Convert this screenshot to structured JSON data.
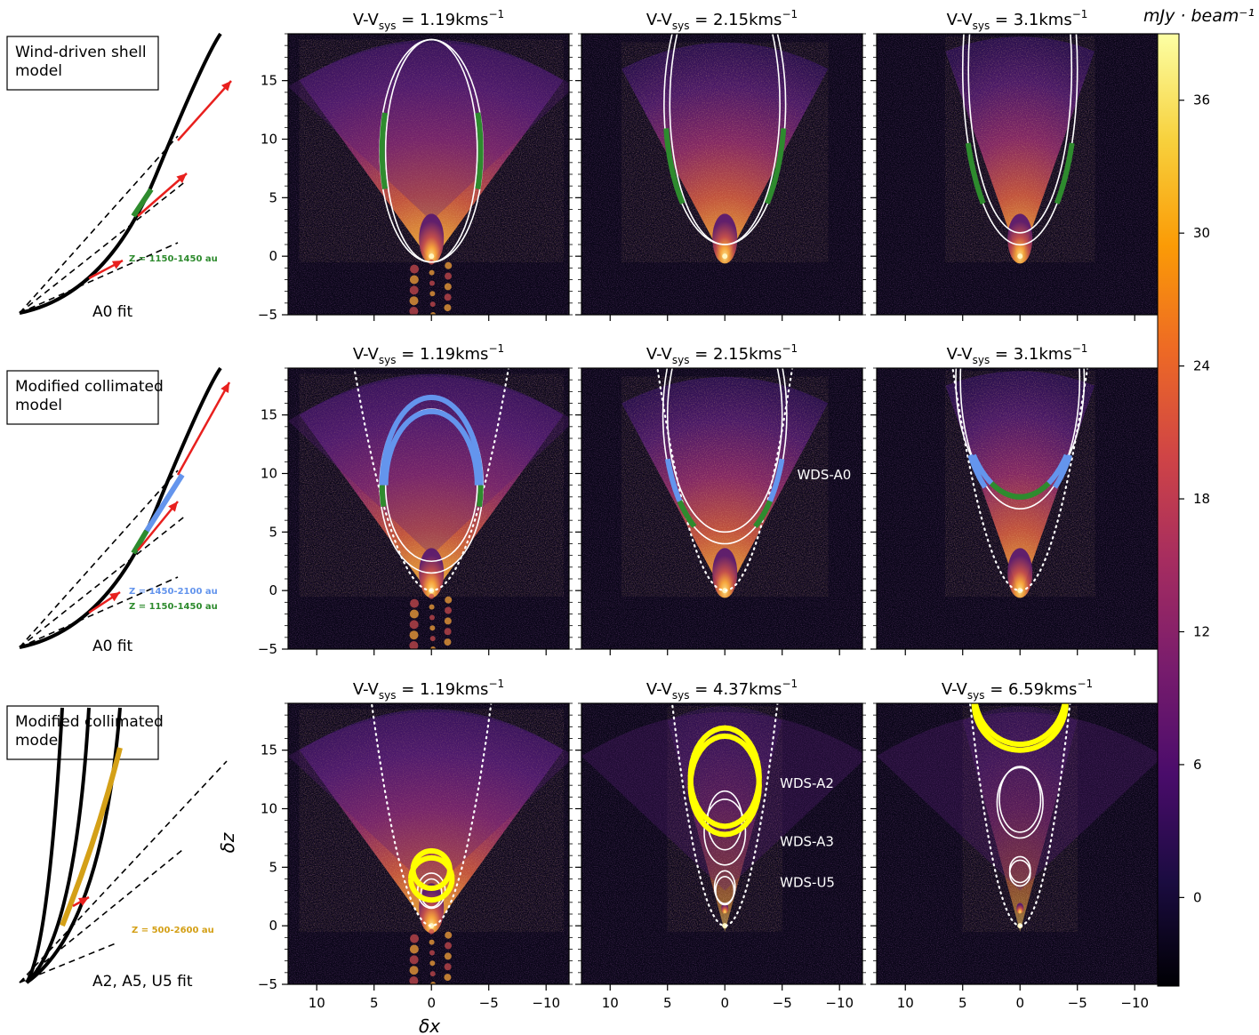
{
  "figure": {
    "colorbar": {
      "unit_label": "mJy · beam⁻¹",
      "ticks": [
        36,
        30,
        24,
        18,
        12,
        6,
        0
      ],
      "range": [
        -4,
        39
      ],
      "colors": [
        "#000004",
        "#1b0c41",
        "#4a0c6b",
        "#781c6d",
        "#a52c60",
        "#cf4446",
        "#ed6925",
        "#fb9b06",
        "#f7d13d",
        "#fcffa4"
      ]
    },
    "axes": {
      "xlabel": "δx",
      "ylabel": "δz",
      "xticks": [
        "10",
        "5",
        "0",
        "−5",
        "−10"
      ],
      "yticks": [
        "15",
        "10",
        "5",
        "0",
        "−5"
      ],
      "xlim": [
        12.5,
        -12
      ],
      "ylim": [
        -5,
        19
      ]
    },
    "schematics": [
      {
        "box": [
          "Wind-driven shell",
          "model"
        ],
        "fit": "A0 fit",
        "zlabels": [
          {
            "text": "Z = 1150-1450 au",
            "color": "#2e8b2e"
          }
        ]
      },
      {
        "box": [
          "Modified collimated",
          "model"
        ],
        "fit": "A0 fit",
        "zlabels": [
          {
            "text": "Z = 1450-2100 au",
            "color": "#6495ed"
          },
          {
            "text": "Z = 1150-1450 au",
            "color": "#2e8b2e"
          }
        ]
      },
      {
        "box": [
          "Modified collimated",
          "model"
        ],
        "fit": "A2, A5, U5 fit",
        "zlabels": [
          {
            "text": "Z = 500-2600 au",
            "color": "#d4a017"
          }
        ]
      }
    ],
    "panels": [
      {
        "title": "V-V",
        "sub": "sys",
        "value": " = 1.19kms",
        "sup": "−1",
        "labels": []
      },
      {
        "title": "V-V",
        "sub": "sys",
        "value": " = 2.15kms",
        "sup": "−1",
        "labels": []
      },
      {
        "title": "V-V",
        "sub": "sys",
        "value": " = 3.1kms",
        "sup": "−1",
        "labels": []
      },
      {
        "title": "V-V",
        "sub": "sys",
        "value": " = 1.19kms",
        "sup": "−1",
        "labels": []
      },
      {
        "title": "V-V",
        "sub": "sys",
        "value": " = 2.15kms",
        "sup": "−1",
        "labels": [
          "WDS-A0"
        ]
      },
      {
        "title": "V-V",
        "sub": "sys",
        "value": " = 3.1kms",
        "sup": "−1",
        "labels": []
      },
      {
        "title": "V-V",
        "sub": "sys",
        "value": " = 1.19kms",
        "sup": "−1",
        "labels": []
      },
      {
        "title": "V-V",
        "sub": "sys",
        "value": " = 4.37kms",
        "sup": "−1",
        "labels": [
          "WDS-A2",
          "WDS-A3",
          "WDS-U5"
        ]
      },
      {
        "title": "V-V",
        "sub": "sys",
        "value": " = 6.59kms",
        "sup": "−1",
        "labels": []
      }
    ]
  },
  "chart_data": {
    "type": "heatmap",
    "layout": "3x3 grid of channel maps",
    "xlabel": "δx",
    "ylabel": "δz",
    "xlim": [
      12.5,
      -12
    ],
    "ylim": [
      -5,
      19
    ],
    "colorbar_label": "mJy · beam⁻¹",
    "colorbar_range": [
      -4,
      39
    ],
    "velocities_kms": [
      1.19,
      2.15,
      3.1,
      1.19,
      2.15,
      3.1,
      1.19,
      4.37,
      6.59
    ],
    "annotations": [
      "WDS-A0",
      "WDS-A2",
      "WDS-A3",
      "WDS-U5"
    ]
  }
}
